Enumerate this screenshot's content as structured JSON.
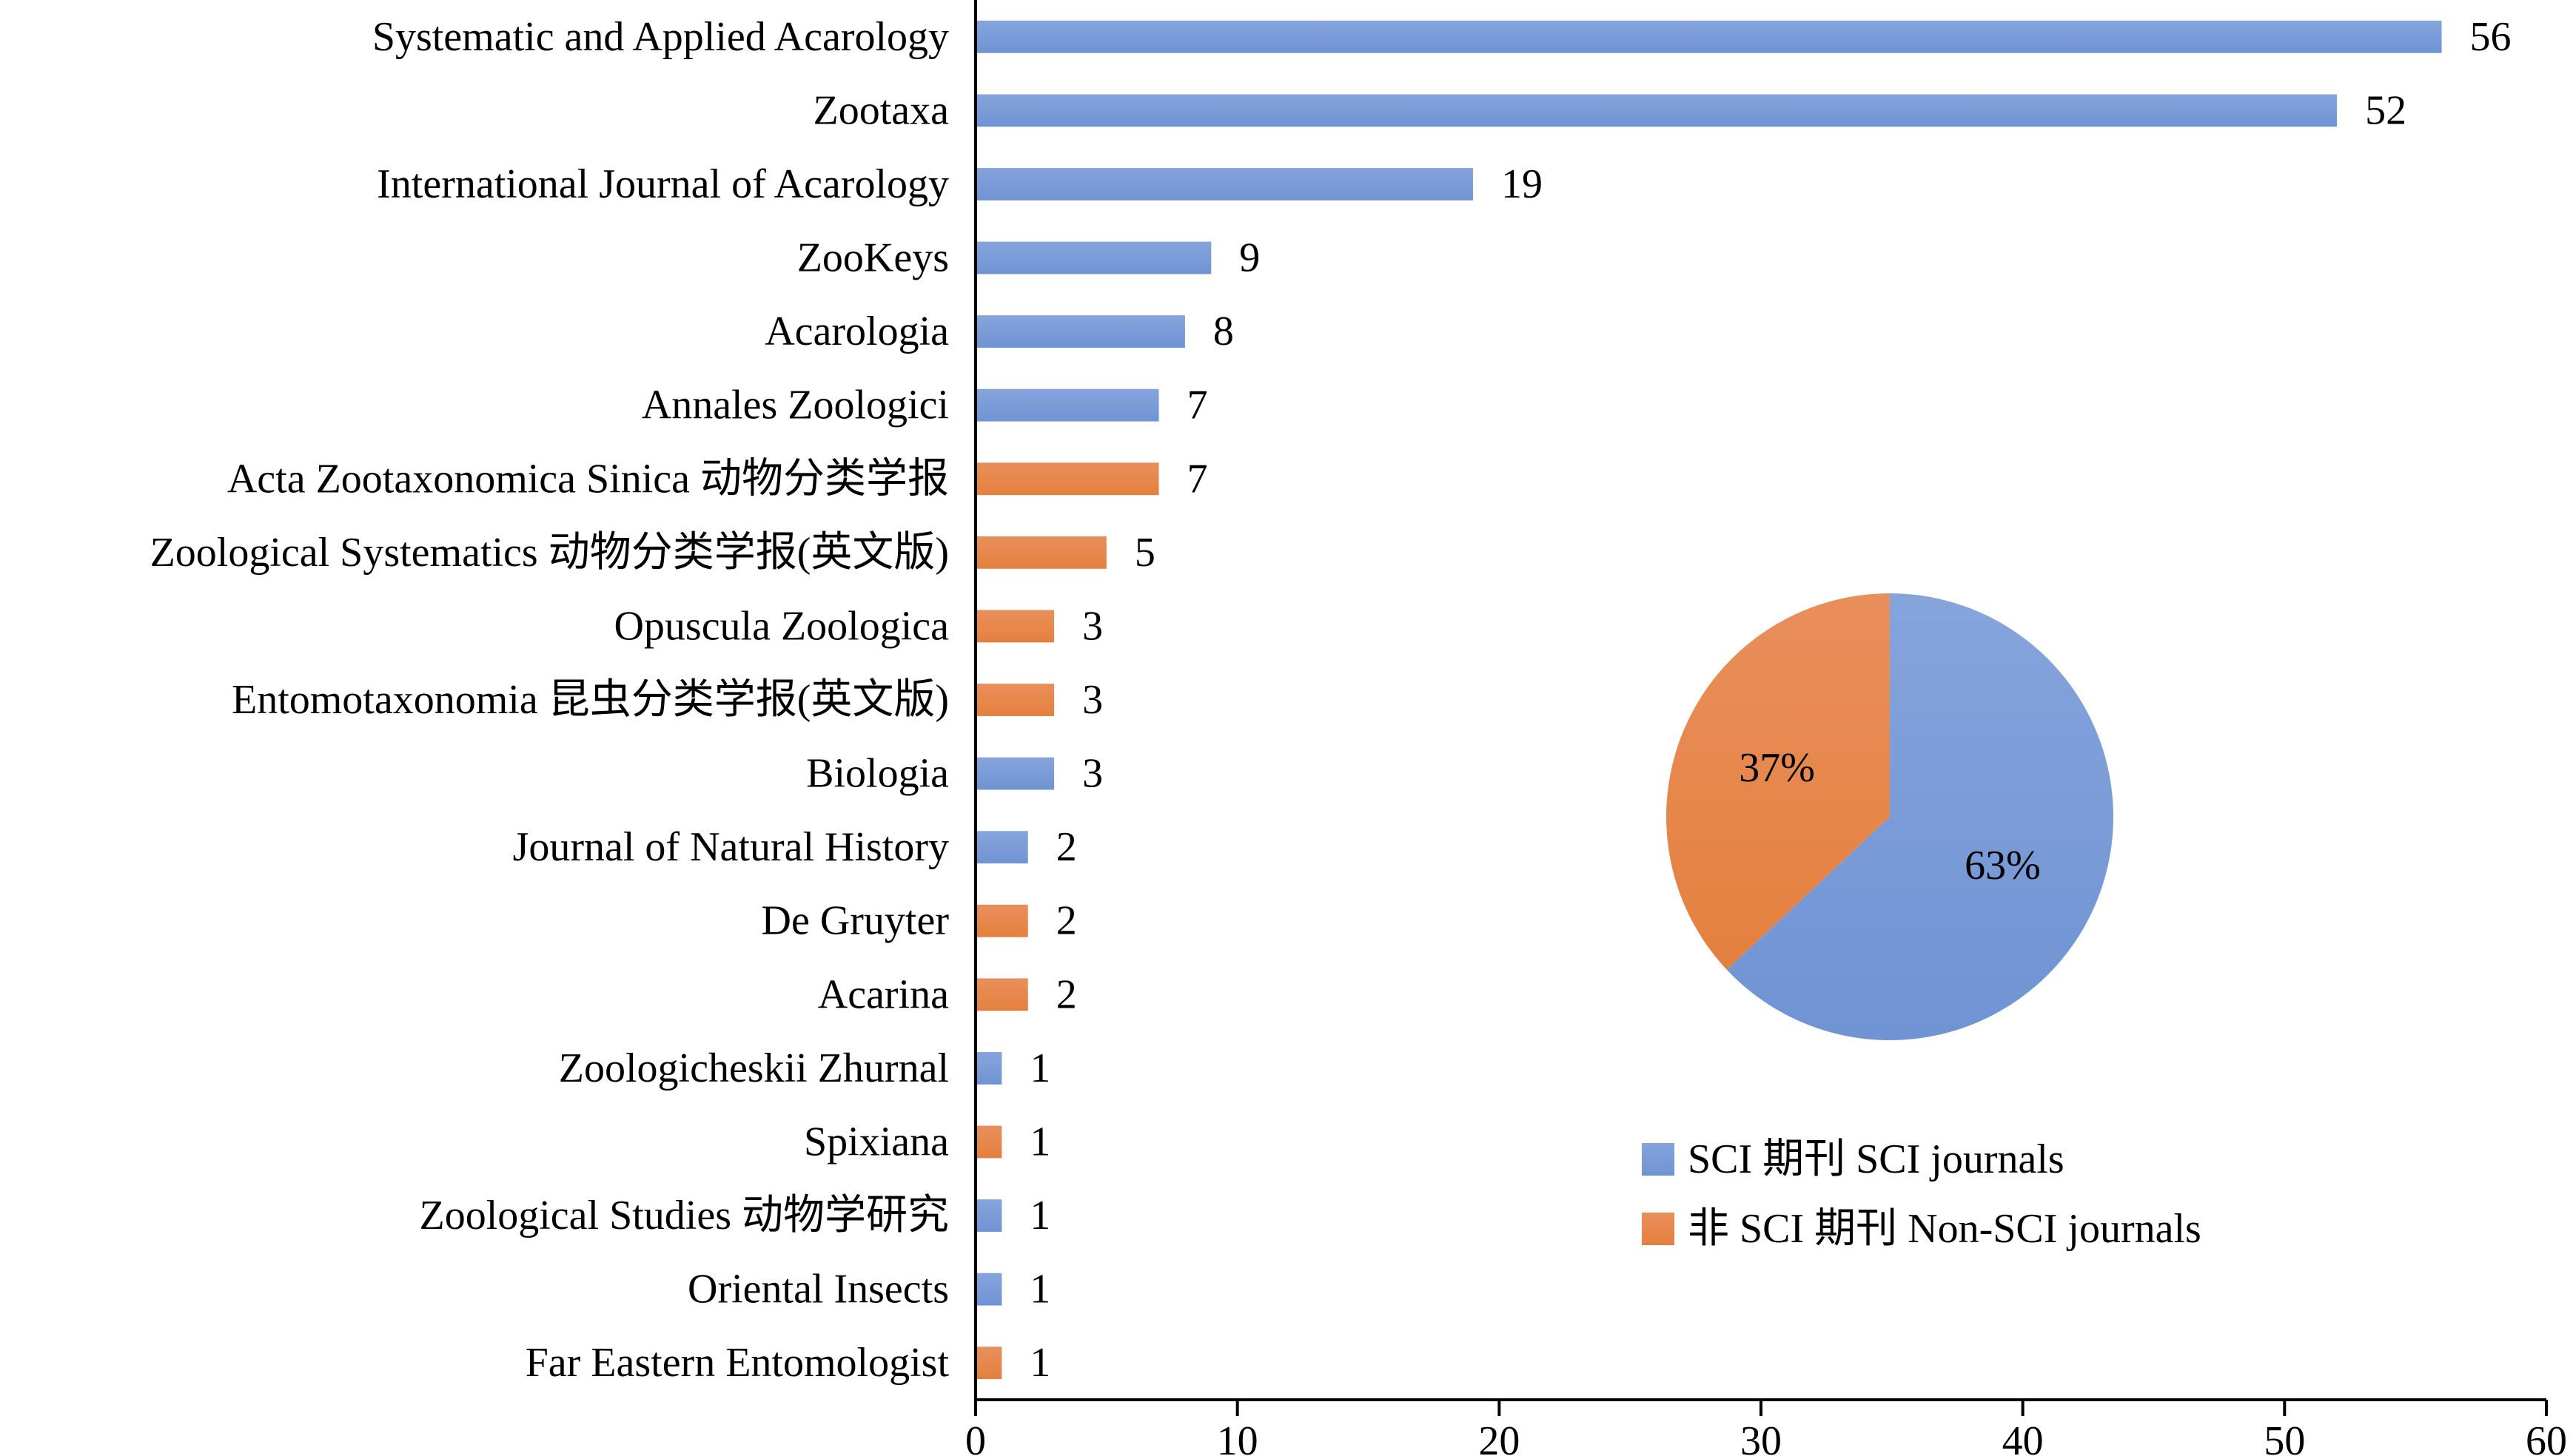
{
  "chart_data": [
    {
      "type": "bar",
      "orientation": "horizontal",
      "categories": [
        "Systematic and Applied Acarology",
        "Zootaxa",
        "International Journal of Acarology",
        "ZooKeys",
        "Acarologia",
        "Annales Zoologici",
        "Acta Zootaxonomica Sinica 动物分类学报",
        "Zoological Systematics 动物分类学报(英文版)",
        "Opuscula Zoologica",
        "Entomotaxonomia 昆虫分类学报(英文版)",
        "Biologia",
        "Journal of Natural History",
        "De Gruyter",
        "Acarina",
        "Zoologicheskii Zhurnal",
        "Spixiana",
        "Zoological Studies 动物学研究",
        "Oriental Insects",
        "Far Eastern Entomologist"
      ],
      "values": [
        56,
        52,
        19,
        9,
        8,
        7,
        7,
        5,
        3,
        3,
        3,
        2,
        2,
        2,
        1,
        1,
        1,
        1,
        1
      ],
      "value_labels": [
        "56",
        "52",
        "19",
        "9",
        "8",
        "7",
        "7",
        "5",
        "3",
        "3",
        "3",
        "2",
        "2",
        "2",
        "1",
        "1",
        "1",
        "1",
        "1"
      ],
      "groups": [
        "sci",
        "sci",
        "sci",
        "sci",
        "sci",
        "sci",
        "non",
        "non",
        "non",
        "non",
        "sci",
        "sci",
        "non",
        "non",
        "sci",
        "non",
        "sci",
        "sci",
        "non"
      ],
      "xlim": [
        0,
        60
      ],
      "xticks": [
        0,
        10,
        20,
        30,
        40,
        50,
        60
      ],
      "xtick_labels": [
        "0",
        "10",
        "20",
        "30",
        "40",
        "50",
        "60"
      ],
      "grid": false,
      "title": "",
      "xlabel": "",
      "ylabel": ""
    },
    {
      "type": "pie",
      "slices": [
        {
          "key": "sci",
          "label": "63%",
          "value": 63
        },
        {
          "key": "non",
          "label": "37%",
          "value": 37
        }
      ]
    }
  ],
  "legend": {
    "placement": "lower-right",
    "entries": [
      {
        "key": "sci",
        "label": "SCI 期刊 SCI journals"
      },
      {
        "key": "non",
        "label": "非 SCI 期刊 Non-SCI journals"
      }
    ]
  },
  "colors": {
    "sci": "#6f93d3",
    "sci_light": "#86a4dc",
    "non": "#e4803e",
    "non_light": "#e98f5c",
    "axis": "#000000"
  }
}
